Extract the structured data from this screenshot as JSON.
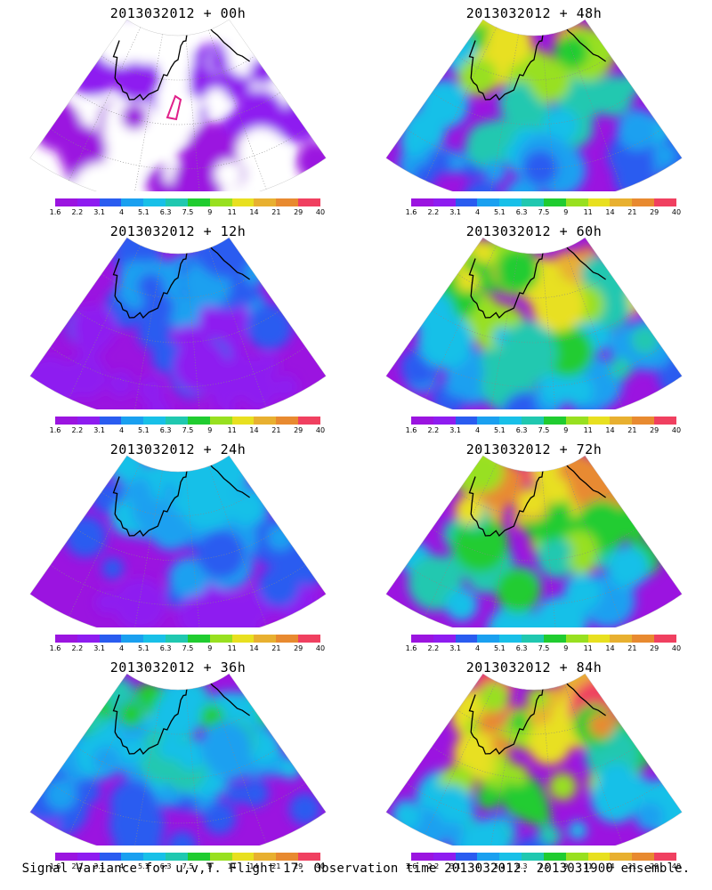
{
  "panels": [
    {
      "title": "2013032012 + 00h",
      "intensity": 0.15
    },
    {
      "title": "2013032012 + 48h",
      "intensity": 0.72
    },
    {
      "title": "2013032012 + 12h",
      "intensity": 0.3
    },
    {
      "title": "2013032012 + 60h",
      "intensity": 0.8
    },
    {
      "title": "2013032012 + 24h",
      "intensity": 0.42
    },
    {
      "title": "2013032012 + 72h",
      "intensity": 0.88
    },
    {
      "title": "2013032012 + 36h",
      "intensity": 0.55
    },
    {
      "title": "2013032012 + 84h",
      "intensity": 0.95
    }
  ],
  "colorbar": {
    "labels": [
      "1.6",
      "2.2",
      "3.1",
      "4",
      "5.1",
      "6.3",
      "7.5",
      "9",
      "11",
      "14",
      "21",
      "29",
      "40"
    ],
    "colors": [
      "#9b14e0",
      "#8e1cf0",
      "#2a5cf0",
      "#1aa0f0",
      "#18c0e8",
      "#20c8b0",
      "#20cc30",
      "#98e020",
      "#e8e020",
      "#e8b030",
      "#e88a30",
      "#f04060"
    ]
  },
  "caption": "Signal Variance for u,v,T. Flight 17. Observation time 2013032012. 2013031900 ensemble."
}
